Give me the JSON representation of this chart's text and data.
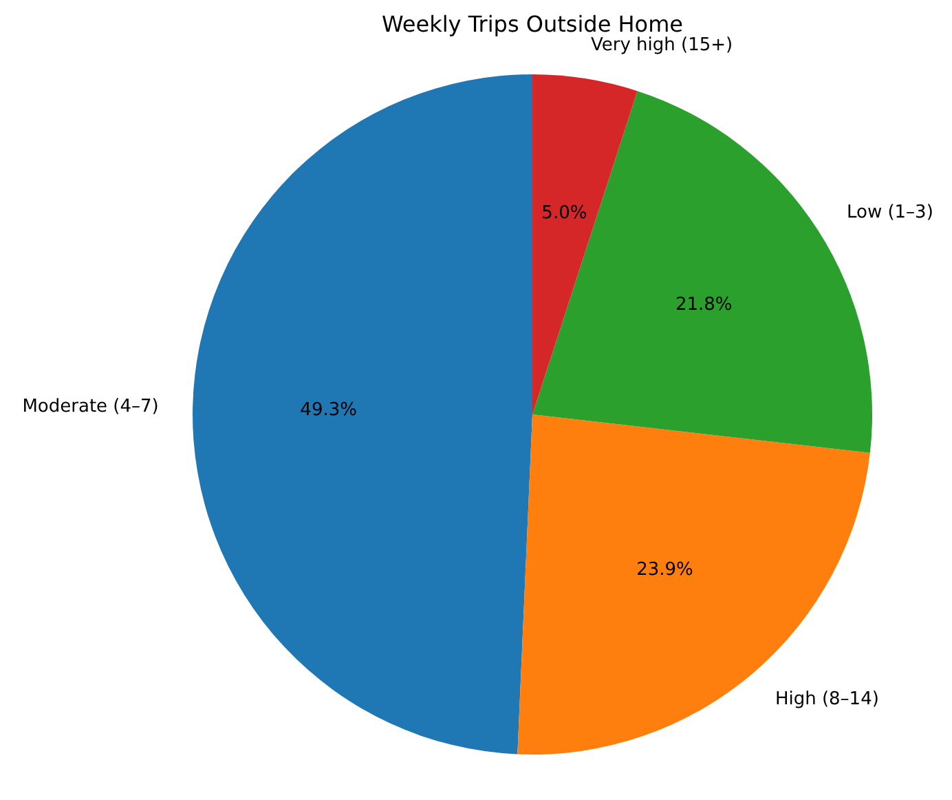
{
  "chart_data": {
    "type": "pie",
    "title": "Weekly Trips Outside Home",
    "categories": [
      "Moderate (4–7)",
      "High (8–14)",
      "Low (1–3)",
      "Very high (15+)"
    ],
    "values": [
      49.3,
      23.9,
      21.8,
      5.0
    ],
    "value_labels": [
      "49.3%",
      "23.9%",
      "21.8%",
      "5.0%"
    ],
    "colors": [
      "#1f77b4",
      "#ff7f0e",
      "#2ca02c",
      "#d62728"
    ]
  }
}
